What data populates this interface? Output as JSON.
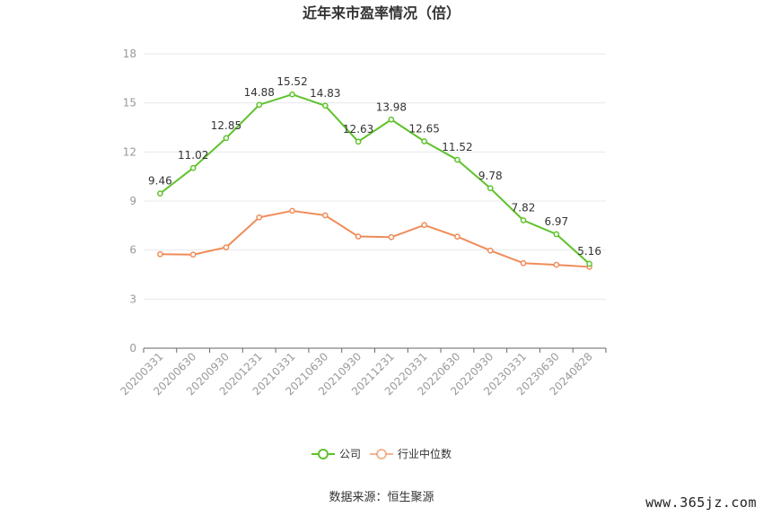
{
  "chart_data": {
    "type": "line",
    "title": "近年来市盈率情况（倍）",
    "categories": [
      "20200331",
      "20200630",
      "20200930",
      "20201231",
      "20210331",
      "20210630",
      "20210930",
      "20211231",
      "20220331",
      "20220630",
      "20220930",
      "20230331",
      "20230630",
      "20240828"
    ],
    "ylim": [
      0,
      18
    ],
    "yticks": [
      0,
      3,
      6,
      9,
      12,
      15,
      18
    ],
    "grid": true,
    "legend_position": "bottom",
    "series": [
      {
        "name": "公司",
        "color": "#5fc22b",
        "show_labels": true,
        "values": [
          9.46,
          11.02,
          12.85,
          14.88,
          15.52,
          14.83,
          12.63,
          13.98,
          12.65,
          11.52,
          9.78,
          7.82,
          6.97,
          5.16
        ]
      },
      {
        "name": "行业中位数",
        "color": "#f08c5a",
        "show_labels": false,
        "values": [
          5.75,
          5.72,
          6.17,
          8.0,
          8.4,
          8.12,
          6.83,
          6.79,
          7.53,
          6.82,
          5.97,
          5.2,
          5.1,
          4.97
        ]
      }
    ]
  },
  "source_text": "数据来源：恒生聚源",
  "watermark_text": "www.365jz.com"
}
